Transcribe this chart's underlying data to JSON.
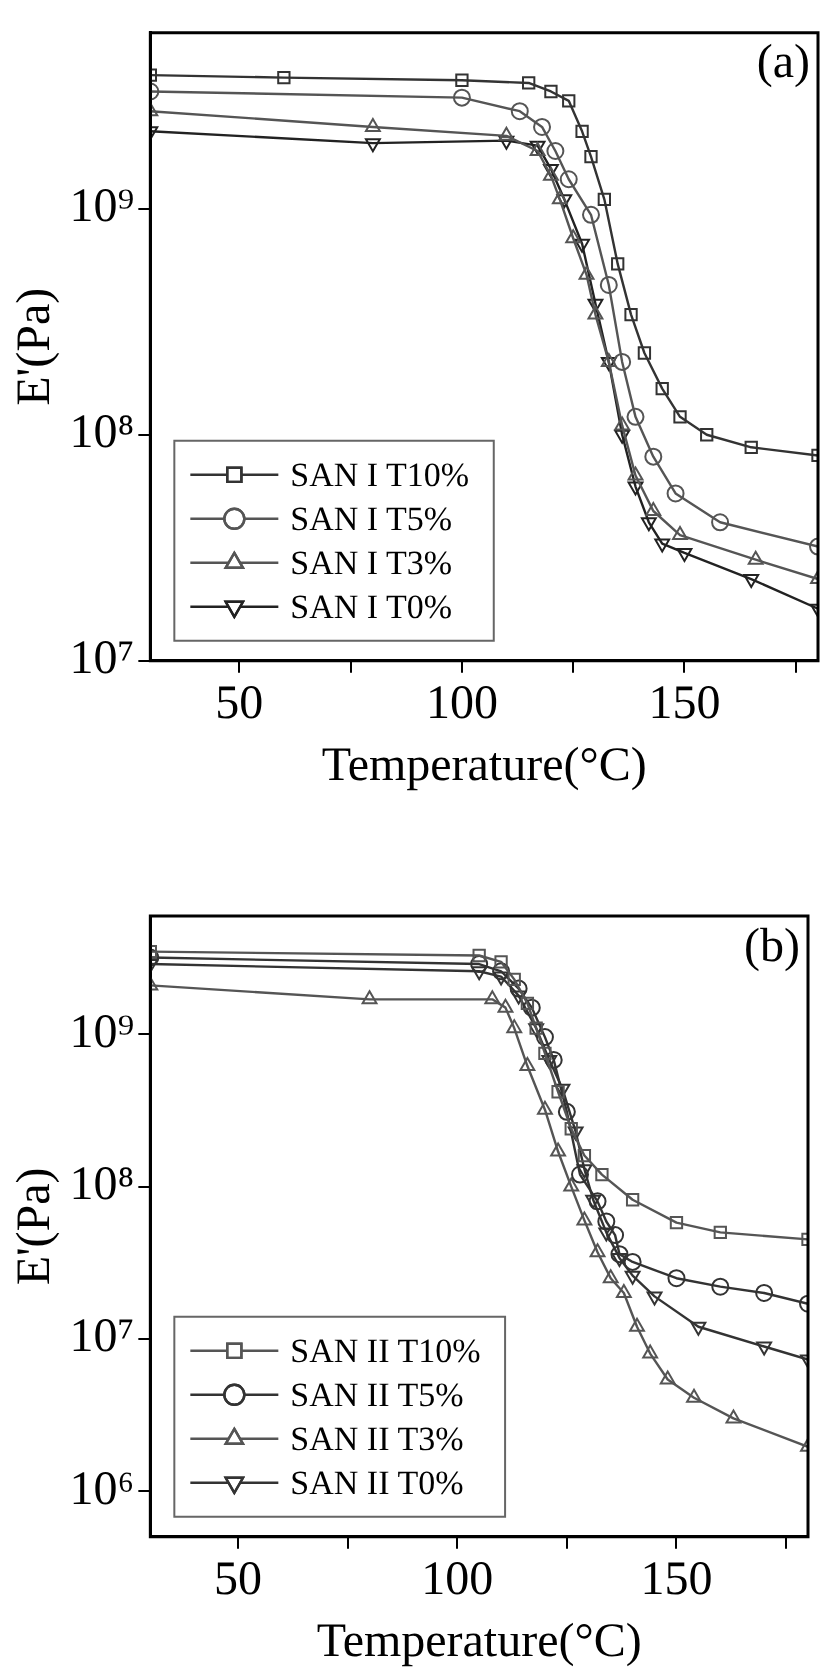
{
  "chart_data": [
    {
      "type": "line",
      "xlabel": "Temperature(°C)",
      "ylabel": "E'(Pa)",
      "annotations": [
        "(a)"
      ],
      "log": "y",
      "grid": false,
      "legend": "bottom left",
      "xlim": [
        30,
        180
      ],
      "xticks": [
        50,
        {
          "value": 75,
          "label": null
        },
        100,
        {
          "value": 125,
          "label": null
        },
        150,
        {
          "value": 175,
          "label": null
        }
      ],
      "ylim": [
        10000000.0,
        6000000000.0
      ],
      "yticks": [
        {
          "value": 10000000.0,
          "label": "10⁷"
        },
        {
          "value": 100000000.0,
          "label": "10⁸"
        },
        {
          "value": 1000000000.0,
          "label": "10⁹"
        }
      ],
      "series": [
        {
          "name": "SAN I T10%",
          "color": "#333333",
          "marker": "square",
          "x": [
            30,
            60,
            100,
            115,
            120,
            124,
            127,
            129,
            132,
            135,
            138,
            141,
            145,
            149,
            155,
            165,
            180
          ],
          "values": [
            3900000000.0,
            3800000000.0,
            3700000000.0,
            3600000000.0,
            3300000000.0,
            3000000000.0,
            2200000000.0,
            1700000000.0,
            1100000000.0,
            570000000.0,
            340000000.0,
            230000000.0,
            160000000.0,
            120000000.0,
            100000000.0,
            88000000.0,
            81000000.0
          ]
        },
        {
          "name": "SAN I T5%",
          "color": "#555555",
          "marker": "circle",
          "x": [
            30,
            100,
            113,
            118,
            121,
            124,
            129,
            133,
            136,
            139,
            143,
            148,
            158,
            180
          ],
          "values": [
            3300000000.0,
            3100000000.0,
            2700000000.0,
            2300000000.0,
            1800000000.0,
            1350000000.0,
            940000000.0,
            460000000.0,
            210000000.0,
            120000000.0,
            80000000.0,
            55000000.0,
            41000000.0,
            32000000.0
          ]
        },
        {
          "name": "SAN I T3%",
          "color": "#555555",
          "marker": "triangle",
          "x": [
            30,
            80,
            110,
            117,
            120,
            122,
            125,
            128,
            130,
            133,
            136,
            139,
            143,
            149,
            166,
            180
          ],
          "values": [
            2700000000.0,
            2300000000.0,
            2100000000.0,
            1800000000.0,
            1400000000.0,
            1100000000.0,
            740000000.0,
            510000000.0,
            340000000.0,
            210000000.0,
            110000000.0,
            66000000.0,
            46000000.0,
            36000000.0,
            28000000.0,
            23000000.0
          ]
        },
        {
          "name": "SAN I T0%",
          "color": "#222222",
          "marker": "triangle-down",
          "x": [
            30,
            80,
            110,
            117,
            120,
            123,
            127,
            130,
            133,
            136,
            139,
            142,
            145,
            150,
            165,
            180
          ],
          "values": [
            2200000000.0,
            1950000000.0,
            2000000000.0,
            1900000000.0,
            1500000000.0,
            1100000000.0,
            700000000.0,
            380000000.0,
            210000000.0,
            100000000.0,
            59000000.0,
            41000000.0,
            33000000.0,
            30000000.0,
            23000000.0,
            17000000.0
          ]
        }
      ]
    },
    {
      "type": "line",
      "xlabel": "Temperature(°C)",
      "ylabel": "E'(Pa)",
      "annotations": [
        "(b)"
      ],
      "log": "y",
      "grid": false,
      "legend": "bottom left",
      "xlim": [
        30,
        180
      ],
      "xticks": [
        50,
        {
          "value": 75,
          "label": null
        },
        100,
        {
          "value": 125,
          "label": null
        },
        150,
        {
          "value": 175,
          "label": null
        }
      ],
      "ylim": [
        500000.0,
        6000000000.0
      ],
      "yticks": [
        {
          "value": 1000000.0,
          "label": "10⁶"
        },
        {
          "value": 10000000.0,
          "label": "10⁷"
        },
        {
          "value": 100000000.0,
          "label": "10⁸"
        },
        {
          "value": 1000000000.0,
          "label": "10⁹"
        }
      ],
      "series": [
        {
          "name": "SAN II T10%",
          "color": "#555555",
          "marker": "square",
          "x": [
            30,
            105,
            110,
            113,
            116,
            118,
            120,
            123,
            126,
            129,
            133,
            140,
            150,
            160,
            180
          ],
          "values": [
            3500000000.0,
            3300000000.0,
            3000000000.0,
            2300000000.0,
            1600000000.0,
            1100000000.0,
            750000000.0,
            420000000.0,
            240000000.0,
            160000000.0,
            120000000.0,
            82000000.0,
            58000000.0,
            50000000.0,
            45000000.0
          ]
        },
        {
          "name": "SAN II T5%",
          "color": "#333333",
          "marker": "circle",
          "x": [
            30,
            105,
            110,
            114,
            117,
            120,
            122,
            125,
            128,
            132,
            134,
            136,
            137,
            140,
            150,
            160,
            170,
            180
          ],
          "values": [
            3200000000.0,
            2900000000.0,
            2600000000.0,
            2000000000.0,
            1500000000.0,
            960000000.0,
            680000000.0,
            310000000.0,
            120000000.0,
            80000000.0,
            59000000.0,
            48000000.0,
            36000000.0,
            32000000.0,
            25000000.0,
            22000000.0,
            20000000.0,
            17000000.0
          ]
        },
        {
          "name": "SAN II T3%",
          "color": "#555555",
          "marker": "triangle",
          "x": [
            30,
            80,
            108,
            111,
            113,
            116,
            120,
            123,
            126,
            129,
            132,
            135,
            138,
            141,
            144,
            148,
            154,
            163,
            180
          ],
          "values": [
            2100000000.0,
            1700000000.0,
            1700000000.0,
            1500000000.0,
            1100000000.0,
            620000000.0,
            320000000.0,
            170000000.0,
            100000000.0,
            60000000.0,
            37000000.0,
            25000000.0,
            20000000.0,
            12000000.0,
            8000000.0,
            5400000.0,
            4100000.0,
            3000000.0,
            1950000.0
          ]
        },
        {
          "name": "SAN II T0%",
          "color": "#333333",
          "marker": "triangle-down",
          "x": [
            30,
            105,
            110,
            114,
            118,
            121,
            124,
            127,
            129,
            131,
            134,
            137,
            140,
            145,
            155,
            170,
            180
          ],
          "values": [
            2900000000.0,
            2600000000.0,
            2400000000.0,
            1800000000.0,
            1100000000.0,
            680000000.0,
            440000000.0,
            230000000.0,
            130000000.0,
            82000000.0,
            50000000.0,
            34000000.0,
            26000000.0,
            19000000.0,
            12000000.0,
            8900000.0,
            7300000.0
          ]
        }
      ]
    }
  ]
}
